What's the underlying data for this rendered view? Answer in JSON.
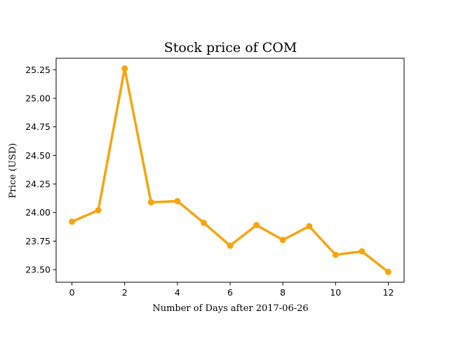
{
  "chart_data": {
    "type": "line",
    "title": "Stock price of COM",
    "xlabel": "Number of Days after 2017-06-26",
    "ylabel": "Price (USD)",
    "x": [
      0,
      1,
      2,
      3,
      4,
      5,
      6,
      7,
      8,
      9,
      10,
      11,
      12
    ],
    "series": [
      {
        "values": [
          23.92,
          24.02,
          25.26,
          24.09,
          24.1,
          23.91,
          23.71,
          23.89,
          23.76,
          23.88,
          23.63,
          23.66,
          23.48
        ],
        "color": "#f5a50f"
      }
    ],
    "xticks": [
      0,
      2,
      4,
      6,
      8,
      10,
      12
    ],
    "xtick_labels": [
      "0",
      "2",
      "4",
      "6",
      "8",
      "10",
      "12"
    ],
    "yticks": [
      23.5,
      23.75,
      24.0,
      24.25,
      24.5,
      24.75,
      25.0,
      25.25
    ],
    "ytick_labels": [
      "23.50",
      "23.75",
      "24.00",
      "24.25",
      "24.50",
      "24.75",
      "25.00",
      "25.25"
    ],
    "xlim": [
      -0.6,
      12.6
    ],
    "ylim": [
      23.39,
      25.35
    ],
    "grid": false,
    "markers": true
  }
}
